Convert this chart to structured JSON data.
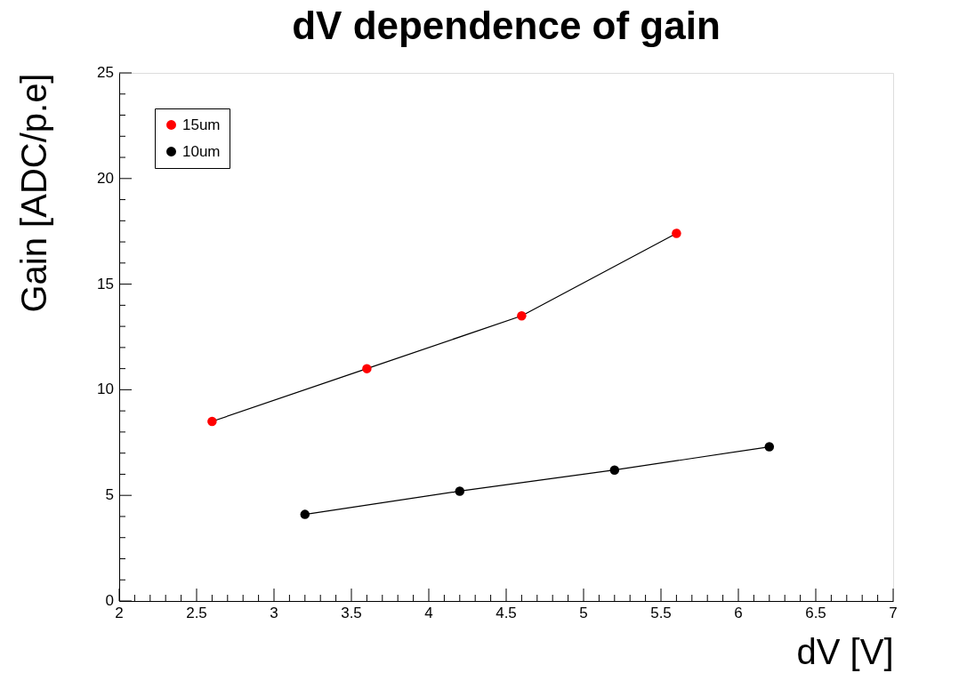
{
  "chart_data": {
    "type": "line",
    "title": "dV dependence of gain",
    "xlabel": "dV [V]",
    "ylabel": "Gain [ADC/p.e]",
    "series": [
      {
        "name": "15um",
        "color": "#ff0000",
        "x": [
          2.6,
          3.6,
          4.6,
          5.6
        ],
        "values": [
          8.5,
          11.0,
          13.5,
          17.4
        ]
      },
      {
        "name": "10um",
        "color": "#000000",
        "x": [
          3.2,
          4.2,
          5.2,
          6.2
        ],
        "values": [
          4.1,
          5.2,
          6.2,
          7.3
        ]
      }
    ],
    "xlim": [
      2,
      7
    ],
    "ylim": [
      0,
      25
    ],
    "xticks": [
      2,
      {
        "value": 2.1,
        "label": null
      },
      {
        "value": 2.2,
        "label": null
      },
      {
        "value": 2.3,
        "label": null
      },
      {
        "value": 2.4,
        "label": null
      },
      2.5,
      {
        "value": 2.6,
        "label": null
      },
      {
        "value": 2.7,
        "label": null
      },
      {
        "value": 2.8,
        "label": null
      },
      {
        "value": 2.9,
        "label": null
      },
      3,
      {
        "value": 3.1,
        "label": null
      },
      {
        "value": 3.2,
        "label": null
      },
      {
        "value": 3.3,
        "label": null
      },
      {
        "value": 3.4,
        "label": null
      },
      3.5,
      {
        "value": 3.6,
        "label": null
      },
      {
        "value": 3.7,
        "label": null
      },
      {
        "value": 3.8,
        "label": null
      },
      {
        "value": 3.9,
        "label": null
      },
      4,
      {
        "value": 4.1,
        "label": null
      },
      {
        "value": 4.2,
        "label": null
      },
      {
        "value": 4.3,
        "label": null
      },
      {
        "value": 4.4,
        "label": null
      },
      4.5,
      {
        "value": 4.6,
        "label": null
      },
      {
        "value": 4.7,
        "label": null
      },
      {
        "value": 4.8,
        "label": null
      },
      {
        "value": 4.9,
        "label": null
      },
      5,
      {
        "value": 5.1,
        "label": null
      },
      {
        "value": 5.2,
        "label": null
      },
      {
        "value": 5.3,
        "label": null
      },
      {
        "value": 5.4,
        "label": null
      },
      5.5,
      {
        "value": 5.6,
        "label": null
      },
      {
        "value": 5.7,
        "label": null
      },
      {
        "value": 5.8,
        "label": null
      },
      {
        "value": 5.9,
        "label": null
      },
      6,
      {
        "value": 6.1,
        "label": null
      },
      {
        "value": 6.2,
        "label": null
      },
      {
        "value": 6.3,
        "label": null
      },
      {
        "value": 6.4,
        "label": null
      },
      6.5,
      {
        "value": 6.6,
        "label": null
      },
      {
        "value": 6.7,
        "label": null
      },
      {
        "value": 6.8,
        "label": null
      },
      {
        "value": 6.9,
        "label": null
      },
      7
    ],
    "yticks": [
      0,
      {
        "value": 1,
        "label": null
      },
      {
        "value": 2,
        "label": null
      },
      {
        "value": 3,
        "label": null
      },
      {
        "value": 4,
        "label": null
      },
      5,
      {
        "value": 6,
        "label": null
      },
      {
        "value": 7,
        "label": null
      },
      {
        "value": 8,
        "label": null
      },
      {
        "value": 9,
        "label": null
      },
      10,
      {
        "value": 11,
        "label": null
      },
      {
        "value": 12,
        "label": null
      },
      {
        "value": 13,
        "label": null
      },
      {
        "value": 14,
        "label": null
      },
      15,
      {
        "value": 16,
        "label": null
      },
      {
        "value": 17,
        "label": null
      },
      {
        "value": 18,
        "label": null
      },
      {
        "value": 19,
        "label": null
      },
      20,
      {
        "value": 21,
        "label": null
      },
      {
        "value": 22,
        "label": null
      },
      {
        "value": 23,
        "label": null
      },
      {
        "value": 24,
        "label": null
      },
      25
    ],
    "grid": false,
    "legend": "top left",
    "marker": "circle",
    "line_style": "solid"
  }
}
